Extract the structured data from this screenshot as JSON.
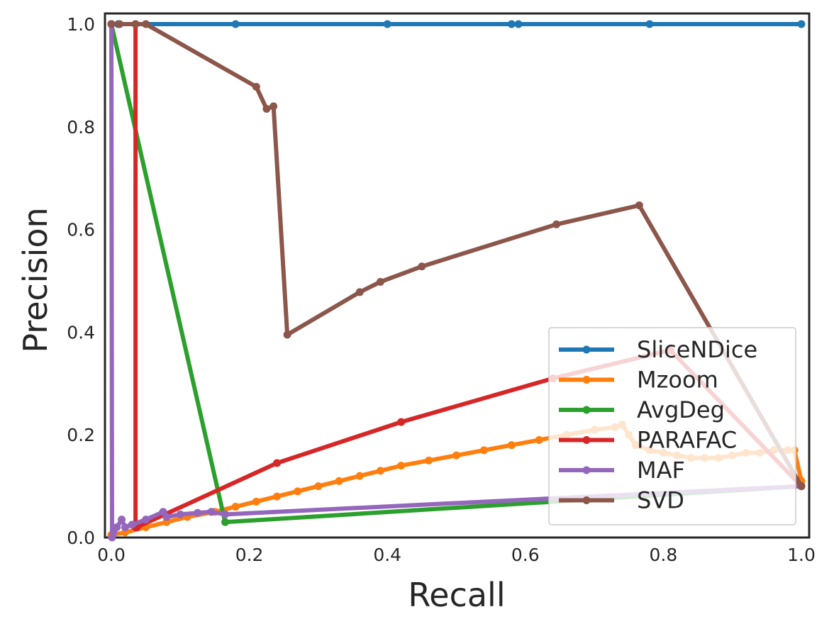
{
  "chart_data": {
    "type": "line",
    "title": "",
    "xlabel": "Recall",
    "ylabel": "Precision",
    "xlim": [
      0.0,
      1.0
    ],
    "ylim": [
      0.0,
      1.0
    ],
    "xticks": [
      "0.0",
      "0.2",
      "0.4",
      "0.6",
      "0.8",
      "1.0"
    ],
    "yticks": [
      "0.0",
      "0.2",
      "0.4",
      "0.6",
      "0.8",
      "1.0"
    ],
    "grid": false,
    "legend_position": "lower-right",
    "series": [
      {
        "name": "SliceNDice",
        "color": "#1f77b4",
        "x": [
          0.0,
          0.01,
          0.18,
          0.4,
          0.58,
          0.59,
          0.78,
          1.0
        ],
        "y": [
          1.0,
          1.0,
          1.0,
          1.0,
          1.0,
          1.0,
          1.0,
          1.0
        ]
      },
      {
        "name": "Mzoom",
        "color": "#ff7f0e",
        "x": [
          0.0,
          0.02,
          0.05,
          0.08,
          0.11,
          0.15,
          0.18,
          0.21,
          0.24,
          0.27,
          0.3,
          0.33,
          0.36,
          0.39,
          0.42,
          0.46,
          0.5,
          0.54,
          0.58,
          0.62,
          0.66,
          0.7,
          0.73,
          0.74,
          0.75,
          0.76,
          0.78,
          0.8,
          0.82,
          0.84,
          0.86,
          0.88,
          0.9,
          0.92,
          0.94,
          0.96,
          0.98,
          0.99,
          1.0
        ],
        "y": [
          0.005,
          0.01,
          0.02,
          0.03,
          0.04,
          0.05,
          0.06,
          0.07,
          0.08,
          0.09,
          0.1,
          0.11,
          0.12,
          0.13,
          0.14,
          0.15,
          0.16,
          0.17,
          0.18,
          0.19,
          0.2,
          0.21,
          0.215,
          0.22,
          0.2,
          0.18,
          0.17,
          0.165,
          0.16,
          0.155,
          0.155,
          0.155,
          0.16,
          0.165,
          0.165,
          0.17,
          0.17,
          0.17,
          0.11
        ]
      },
      {
        "name": "AvgDeg",
        "color": "#2ca02c",
        "x": [
          0.0,
          0.165,
          1.0
        ],
        "y": [
          1.0,
          0.03,
          0.1
        ]
      },
      {
        "name": "PARAFAC",
        "color": "#d62728",
        "x": [
          0.0,
          0.035,
          0.035,
          0.037,
          0.24,
          0.42,
          0.64,
          0.81,
          1.0
        ],
        "y": [
          1.0,
          1.0,
          0.02,
          0.02,
          0.145,
          0.225,
          0.31,
          0.365,
          0.1
        ]
      },
      {
        "name": "MAF",
        "color": "#9467bd",
        "x": [
          0.0,
          0.001,
          0.003,
          0.008,
          0.015,
          0.02,
          0.03,
          0.05,
          0.075,
          0.08,
          0.1,
          0.125,
          0.145,
          0.165,
          1.0
        ],
        "y": [
          1.0,
          0.0,
          0.01,
          0.02,
          0.035,
          0.02,
          0.025,
          0.035,
          0.05,
          0.04,
          0.045,
          0.048,
          0.05,
          0.045,
          0.1
        ]
      },
      {
        "name": "SVD",
        "color": "#8c564b",
        "x": [
          0.0,
          0.012,
          0.035,
          0.05,
          0.21,
          0.225,
          0.235,
          0.255,
          0.36,
          0.39,
          0.45,
          0.645,
          0.765,
          1.0
        ],
        "y": [
          1.0,
          1.0,
          1.0,
          1.0,
          0.878,
          0.835,
          0.84,
          0.395,
          0.478,
          0.498,
          0.528,
          0.61,
          0.647,
          0.1
        ]
      }
    ]
  }
}
